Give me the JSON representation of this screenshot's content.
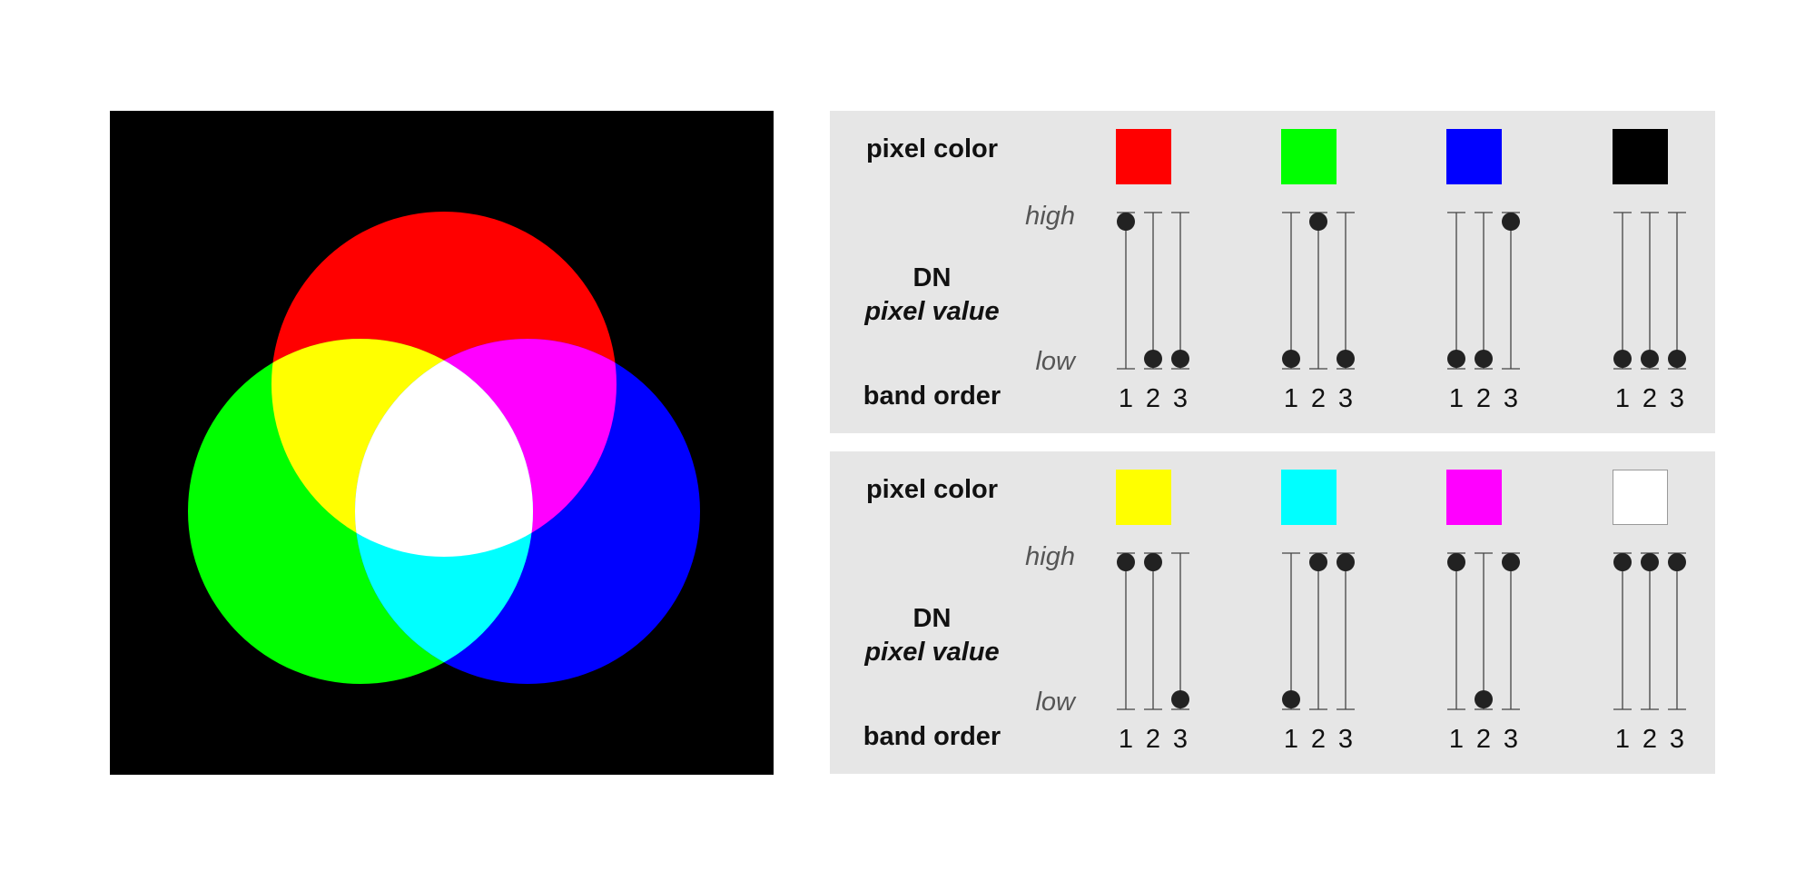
{
  "venn": {
    "circles": [
      {
        "name": "red",
        "color": "#ff0000"
      },
      {
        "name": "green",
        "color": "#00ff00"
      },
      {
        "name": "blue",
        "color": "#0000ff"
      }
    ],
    "overlaps": {
      "red_green": "#ffff00",
      "red_blue": "#ff00ff",
      "green_blue": "#00ffff",
      "all": "#ffffff"
    },
    "background": "#000000"
  },
  "labels": {
    "pixel_color": "pixel color",
    "dn": "DN",
    "pixel_value": "pixel value",
    "band_order": "band order",
    "high": "high",
    "low": "low"
  },
  "band_numbers": [
    "1",
    "2",
    "3"
  ],
  "panels": [
    {
      "groups": [
        {
          "color": "#ff0000",
          "bands": [
            "high",
            "low",
            "low"
          ]
        },
        {
          "color": "#00ff00",
          "bands": [
            "low",
            "high",
            "low"
          ]
        },
        {
          "color": "#0000ff",
          "bands": [
            "low",
            "low",
            "high"
          ]
        },
        {
          "color": "#000000",
          "bands": [
            "low",
            "low",
            "low"
          ]
        }
      ]
    },
    {
      "groups": [
        {
          "color": "#ffff00",
          "bands": [
            "high",
            "high",
            "low"
          ]
        },
        {
          "color": "#00ffff",
          "bands": [
            "low",
            "high",
            "high"
          ]
        },
        {
          "color": "#ff00ff",
          "bands": [
            "high",
            "low",
            "high"
          ]
        },
        {
          "color": "#ffffff",
          "bands": [
            "high",
            "high",
            "high"
          ]
        }
      ]
    }
  ]
}
